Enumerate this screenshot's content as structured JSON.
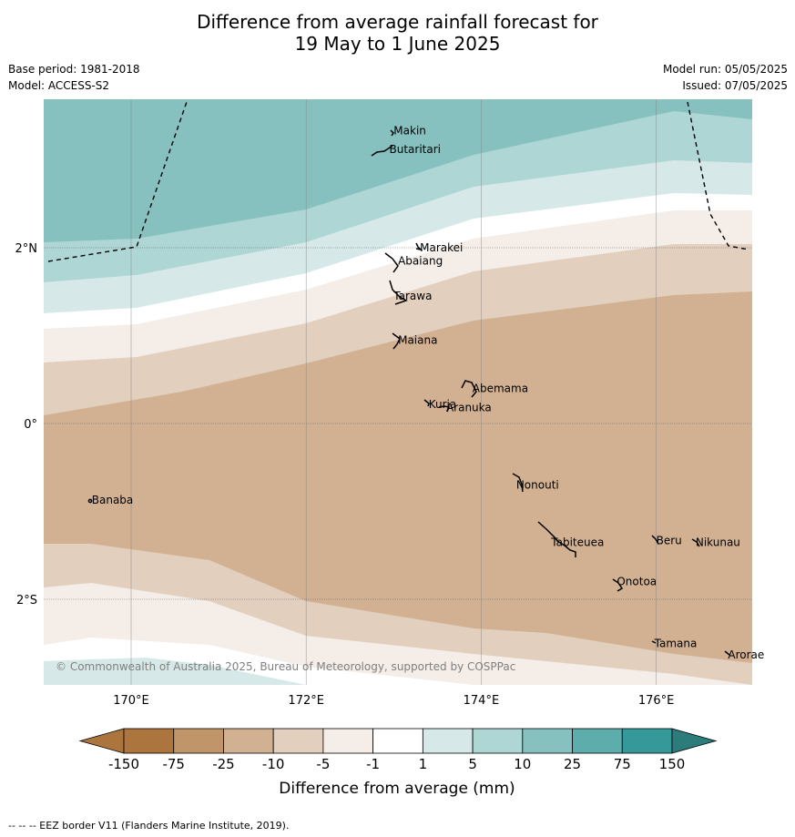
{
  "header": {
    "title_line1": "Difference from average rainfall forecast for",
    "title_line2": "19 May to 1 June 2025",
    "base_period": "Base period: 1981-2018",
    "model": "Model: ACCESS-S2",
    "model_run": "Model run: 05/05/2025",
    "issued": "Issued: 07/05/2025"
  },
  "map": {
    "lon_range": [
      169.0,
      177.1
    ],
    "lat_range": [
      -3.0,
      3.7
    ],
    "lon_ticks": [
      {
        "value": 170,
        "label": "170°E"
      },
      {
        "value": 172,
        "label": "172°E"
      },
      {
        "value": 174,
        "label": "174°E"
      },
      {
        "value": 176,
        "label": "176°E"
      }
    ],
    "lat_ticks": [
      {
        "value": 2,
        "label": "2°N"
      },
      {
        "value": 0,
        "label": "0°"
      },
      {
        "value": -2,
        "label": "2°S"
      }
    ],
    "places": [
      {
        "name": "Makin",
        "lon": 173.0,
        "lat": 3.33
      },
      {
        "name": "Butaritari",
        "lon": 172.95,
        "lat": 3.12
      },
      {
        "name": "Marakei",
        "lon": 173.3,
        "lat": 2.0
      },
      {
        "name": "Abaiang",
        "lon": 173.05,
        "lat": 1.85
      },
      {
        "name": "Tarawa",
        "lon": 173.0,
        "lat": 1.45
      },
      {
        "name": "Maiana",
        "lon": 173.05,
        "lat": 0.95
      },
      {
        "name": "Abemama",
        "lon": 173.9,
        "lat": 0.4
      },
      {
        "name": "Kuria",
        "lon": 173.4,
        "lat": 0.22
      },
      {
        "name": "Aranuka",
        "lon": 173.6,
        "lat": 0.18
      },
      {
        "name": "Banaba",
        "lon": 169.55,
        "lat": -0.87
      },
      {
        "name": "Nonouti",
        "lon": 174.4,
        "lat": -0.7
      },
      {
        "name": "Tabiteuea",
        "lon": 174.8,
        "lat": -1.35
      },
      {
        "name": "Beru",
        "lon": 176.0,
        "lat": -1.33
      },
      {
        "name": "Nikunau",
        "lon": 176.45,
        "lat": -1.35
      },
      {
        "name": "Onotoa",
        "lon": 175.55,
        "lat": -1.8
      },
      {
        "name": "Tamana",
        "lon": 175.98,
        "lat": -2.5
      },
      {
        "name": "Arorae",
        "lon": 176.82,
        "lat": -2.63
      }
    ],
    "copyright": "© Commonwealth of Australia 2025, Bureau of Meteorology, supported by COSPPac"
  },
  "colorbar": {
    "ticks": [
      "-150",
      "-75",
      "-25",
      "-10",
      "-5",
      "-1",
      "1",
      "5",
      "10",
      "25",
      "75",
      "150"
    ],
    "colors": [
      "#ad753e",
      "#c1956a",
      "#d2b193",
      "#e3cfbe",
      "#f4ede8",
      "#ffffff",
      "#d6e9e8",
      "#aed6d5",
      "#86c1c0",
      "#5cadac",
      "#349998",
      "#2b7c7b"
    ],
    "label": "Difference from average (mm)"
  },
  "footnote": "--  --  -- EEZ border V11 (Flanders Marine Institute, 2019)."
}
